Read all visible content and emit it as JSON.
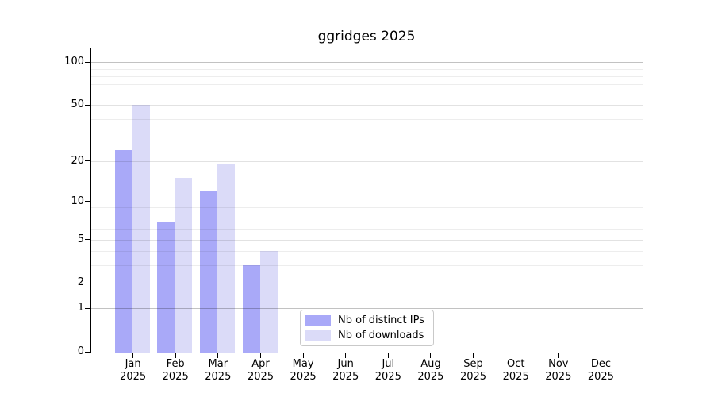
{
  "chart_data": {
    "type": "bar",
    "title": "ggridges 2025",
    "categories": [
      "Jan",
      "Feb",
      "Mar",
      "Apr",
      "May",
      "Jun",
      "Jul",
      "Aug",
      "Sep",
      "Oct",
      "Nov",
      "Dec"
    ],
    "year_label": "2025",
    "series": [
      {
        "name": "Nb of distinct IPs",
        "color": "#a9a9f8",
        "values": [
          24,
          7,
          12,
          3,
          0,
          0,
          0,
          0,
          0,
          0,
          0,
          0
        ]
      },
      {
        "name": "Nb of downloads",
        "color": "#dbdbf8",
        "values": [
          50,
          15,
          19,
          4,
          0,
          0,
          0,
          0,
          0,
          0,
          0,
          0
        ]
      }
    ],
    "xlabel": "",
    "ylabel": "",
    "y_scale": "log1p",
    "ylim": [
      0,
      125
    ],
    "y_ticks": [
      0,
      1,
      2,
      5,
      10,
      20,
      50,
      100
    ],
    "y_major_gridlines": [
      1,
      10,
      100
    ],
    "y_labeled_minor_gridlines": [
      2,
      5,
      20,
      50
    ],
    "y_minor_gridlines": [
      3,
      4,
      6,
      7,
      8,
      9,
      30,
      40,
      60,
      70,
      80,
      90
    ],
    "grid": "horizontal gridlines only",
    "legend_position": "inside plot, bottom center-left"
  },
  "colors": {
    "background": "#ffffff",
    "axis": "#000000",
    "text": "#000000",
    "bar_distinct_ips": "#a9a9f8",
    "bar_downloads": "#dbdbf8",
    "grid_major": "#c2c2c2",
    "grid_labeled": "#e2e2e2",
    "grid_minor": "#ededed",
    "legend_border": "#c9c9c9",
    "legend_background": "#ffffff"
  }
}
